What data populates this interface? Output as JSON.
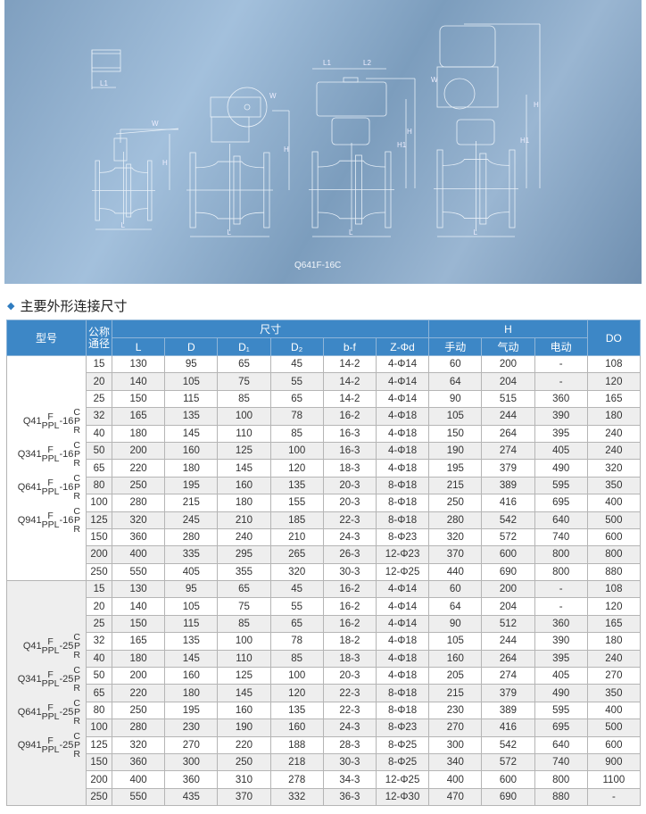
{
  "diagram": {
    "caption": "Q641F-16C",
    "labels": {
      "L": "L",
      "W": "W",
      "H": "H",
      "H1": "H1",
      "L1": "L1",
      "L2": "L2"
    }
  },
  "heading": {
    "icon": "diamond-bullet",
    "text": "主要外形连接尺寸"
  },
  "table": {
    "headers": {
      "model": "型号",
      "dn": "公称通径",
      "size": "尺寸",
      "h": "H",
      "do": "DO",
      "sub": [
        "L",
        "D",
        "D₁",
        "D₂",
        "b-f",
        "Z-Φd"
      ],
      "hsub": [
        "手动",
        "气动",
        "电动"
      ]
    },
    "groups": [
      {
        "models": [
          {
            "prefix": "Q41",
            "top": "F",
            "bottom": "PPL",
            "pressure": "-16",
            "suffix": [
              "C",
              "P",
              "R"
            ]
          },
          {
            "prefix": "Q341",
            "top": "F",
            "bottom": "PPL",
            "pressure": "-16",
            "suffix": [
              "C",
              "P",
              "R"
            ]
          },
          {
            "prefix": "Q641",
            "top": "F",
            "bottom": "PPL",
            "pressure": "-16",
            "suffix": [
              "C",
              "P",
              "R"
            ]
          },
          {
            "prefix": "Q941",
            "top": "F",
            "bottom": "PPL",
            "pressure": "-16",
            "suffix": [
              "C",
              "P",
              "R"
            ]
          }
        ],
        "rows": [
          [
            "15",
            "130",
            "95",
            "65",
            "45",
            "14-2",
            "4-Φ14",
            "60",
            "200",
            "-",
            "108"
          ],
          [
            "20",
            "140",
            "105",
            "75",
            "55",
            "14-2",
            "4-Φ14",
            "64",
            "204",
            "-",
            "120"
          ],
          [
            "25",
            "150",
            "115",
            "85",
            "65",
            "14-2",
            "4-Φ14",
            "90",
            "515",
            "360",
            "165"
          ],
          [
            "32",
            "165",
            "135",
            "100",
            "78",
            "16-2",
            "4-Φ18",
            "105",
            "244",
            "390",
            "180"
          ],
          [
            "40",
            "180",
            "145",
            "110",
            "85",
            "16-3",
            "4-Φ18",
            "150",
            "264",
            "395",
            "240"
          ],
          [
            "50",
            "200",
            "160",
            "125",
            "100",
            "16-3",
            "4-Φ18",
            "190",
            "274",
            "405",
            "240"
          ],
          [
            "65",
            "220",
            "180",
            "145",
            "120",
            "18-3",
            "4-Φ18",
            "195",
            "379",
            "490",
            "320"
          ],
          [
            "80",
            "250",
            "195",
            "160",
            "135",
            "20-3",
            "8-Φ18",
            "215",
            "389",
            "595",
            "350"
          ],
          [
            "100",
            "280",
            "215",
            "180",
            "155",
            "20-3",
            "8-Φ18",
            "250",
            "416",
            "695",
            "400"
          ],
          [
            "125",
            "320",
            "245",
            "210",
            "185",
            "22-3",
            "8-Φ18",
            "280",
            "542",
            "640",
            "500"
          ],
          [
            "150",
            "360",
            "280",
            "240",
            "210",
            "24-3",
            "8-Φ23",
            "320",
            "572",
            "740",
            "600"
          ],
          [
            "200",
            "400",
            "335",
            "295",
            "265",
            "26-3",
            "12-Φ23",
            "370",
            "600",
            "800",
            "800"
          ],
          [
            "250",
            "550",
            "405",
            "355",
            "320",
            "30-3",
            "12-Φ25",
            "440",
            "690",
            "800",
            "880"
          ]
        ]
      },
      {
        "models": [
          {
            "prefix": "Q41",
            "top": "F",
            "bottom": "PPL",
            "pressure": "-25",
            "suffix": [
              "C",
              "P",
              "R"
            ]
          },
          {
            "prefix": "Q341",
            "top": "F",
            "bottom": "PPL",
            "pressure": "-25",
            "suffix": [
              "C",
              "P",
              "R"
            ]
          },
          {
            "prefix": "Q641",
            "top": "F",
            "bottom": "PPL",
            "pressure": "-25",
            "suffix": [
              "C",
              "P",
              "R"
            ]
          },
          {
            "prefix": "Q941",
            "top": "F",
            "bottom": "PPL",
            "pressure": "-25",
            "suffix": [
              "C",
              "P",
              "R"
            ]
          }
        ],
        "rows": [
          [
            "15",
            "130",
            "95",
            "65",
            "45",
            "16-2",
            "4-Φ14",
            "60",
            "200",
            "-",
            "108"
          ],
          [
            "20",
            "140",
            "105",
            "75",
            "55",
            "16-2",
            "4-Φ14",
            "64",
            "204",
            "-",
            "120"
          ],
          [
            "25",
            "150",
            "115",
            "85",
            "65",
            "16-2",
            "4-Φ14",
            "90",
            "512",
            "360",
            "165"
          ],
          [
            "32",
            "165",
            "135",
            "100",
            "78",
            "18-2",
            "4-Φ18",
            "105",
            "244",
            "390",
            "180"
          ],
          [
            "40",
            "180",
            "145",
            "110",
            "85",
            "18-3",
            "4-Φ18",
            "160",
            "264",
            "395",
            "240"
          ],
          [
            "50",
            "200",
            "160",
            "125",
            "100",
            "20-3",
            "4-Φ18",
            "205",
            "274",
            "405",
            "270"
          ],
          [
            "65",
            "220",
            "180",
            "145",
            "120",
            "22-3",
            "8-Φ18",
            "215",
            "379",
            "490",
            "350"
          ],
          [
            "80",
            "250",
            "195",
            "160",
            "135",
            "22-3",
            "8-Φ18",
            "230",
            "389",
            "595",
            "400"
          ],
          [
            "100",
            "280",
            "230",
            "190",
            "160",
            "24-3",
            "8-Φ23",
            "270",
            "416",
            "695",
            "500"
          ],
          [
            "125",
            "320",
            "270",
            "220",
            "188",
            "28-3",
            "8-Φ25",
            "300",
            "542",
            "640",
            "600"
          ],
          [
            "150",
            "360",
            "300",
            "250",
            "218",
            "30-3",
            "8-Φ25",
            "340",
            "572",
            "740",
            "900"
          ],
          [
            "200",
            "400",
            "360",
            "310",
            "278",
            "34-3",
            "12-Φ25",
            "400",
            "600",
            "800",
            "1100"
          ],
          [
            "250",
            "550",
            "435",
            "370",
            "332",
            "36-3",
            "12-Φ30",
            "470",
            "690",
            "880",
            "-"
          ]
        ]
      }
    ]
  }
}
